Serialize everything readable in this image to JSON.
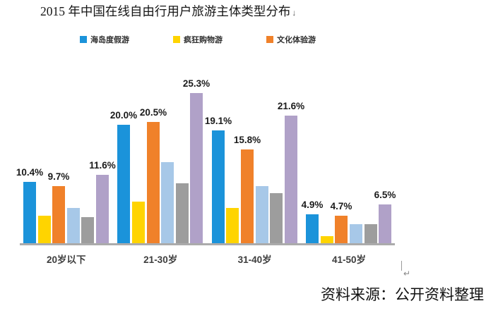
{
  "page": {
    "title": "2015 年中国在线自由行用户旅游主体类型分布",
    "title_paragraph_mark": "↓",
    "return_mark": "↵",
    "source_note": "资料来源：公开资料整理"
  },
  "chart_data": {
    "type": "bar",
    "title": "2015 年中国在线自由行用户旅游主体类型分布",
    "categories": [
      "20岁以下",
      "21-30岁",
      "31-40岁",
      "41-50岁"
    ],
    "series": [
      {
        "legend_label": "海岛度假游",
        "color": "#1b93da",
        "in_legend": true,
        "values": [
          10.4,
          20.0,
          19.1,
          4.9
        ],
        "value_labels": [
          "10.4%",
          "20.0%",
          "19.1%",
          "4.9%"
        ]
      },
      {
        "legend_label": "疯狂购物游",
        "color": "#ffd400",
        "in_legend": true,
        "values": [
          4.7,
          7.0,
          5.9,
          1.2
        ],
        "value_labels": null
      },
      {
        "legend_label": "文化体验游",
        "color": "#f0812a",
        "in_legend": true,
        "values": [
          9.7,
          20.5,
          15.8,
          4.7
        ],
        "value_labels": [
          "9.7%",
          "20.5%",
          "15.8%",
          "4.7%"
        ]
      },
      {
        "legend_label": null,
        "color": "#a7c8e8",
        "in_legend": false,
        "values": [
          5.9,
          13.7,
          9.7,
          3.2
        ],
        "value_labels": null
      },
      {
        "legend_label": null,
        "color": "#9d9d9d",
        "in_legend": false,
        "values": [
          4.4,
          10.1,
          8.4,
          3.2
        ],
        "value_labels": null
      },
      {
        "legend_label": null,
        "color": "#b0a1c8",
        "in_legend": false,
        "values": [
          11.6,
          25.3,
          21.6,
          6.5
        ],
        "value_labels": [
          "11.6%",
          "25.3%",
          "21.6%",
          "6.5%"
        ]
      }
    ],
    "xlabel": "",
    "ylabel": "",
    "ylim": [
      0,
      30
    ],
    "grid": false,
    "axis_color": "#ababab",
    "legend_position": "top",
    "value_label_format": "percent"
  }
}
